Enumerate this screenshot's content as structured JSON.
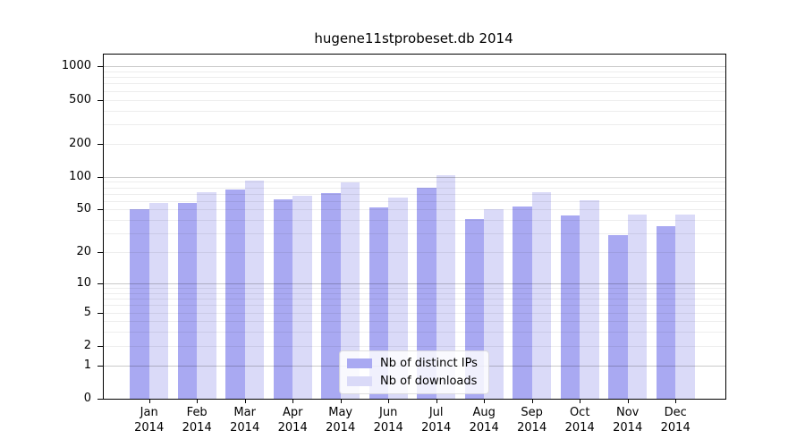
{
  "chart_data": {
    "type": "bar",
    "title": "hugene11stprobeset.db 2014",
    "categories": [
      "Jan",
      "Feb",
      "Mar",
      "Apr",
      "May",
      "Jun",
      "Jul",
      "Aug",
      "Sep",
      "Oct",
      "Nov",
      "Dec"
    ],
    "x_year_label": "2014",
    "series": [
      {
        "name": "Nb of distinct IPs",
        "color": "#a9a9f2",
        "values": [
          50,
          58,
          76,
          62,
          71,
          52,
          80,
          41,
          53,
          44,
          29,
          35
        ]
      },
      {
        "name": "Nb of downloads",
        "color": "#dadaf8",
        "values": [
          58,
          72,
          93,
          67,
          89,
          64,
          103,
          50,
          72,
          61,
          45,
          45
        ]
      }
    ],
    "yscale": "log1p",
    "yticks": [
      1000,
      500,
      200,
      100,
      50,
      20,
      10,
      5,
      2,
      1,
      0
    ],
    "ytick_labels": [
      "1000",
      "500",
      "200",
      "100",
      "50",
      "20",
      "10",
      "5",
      "2",
      "1",
      "0"
    ],
    "ylim": [
      0,
      1280
    ],
    "grid": true,
    "legend_position": "inside-bottom-center",
    "colors": {
      "major_grid": "#c9c9c9",
      "minor_grid": "#ededed",
      "axis": "#000000",
      "background": "#ffffff"
    }
  }
}
